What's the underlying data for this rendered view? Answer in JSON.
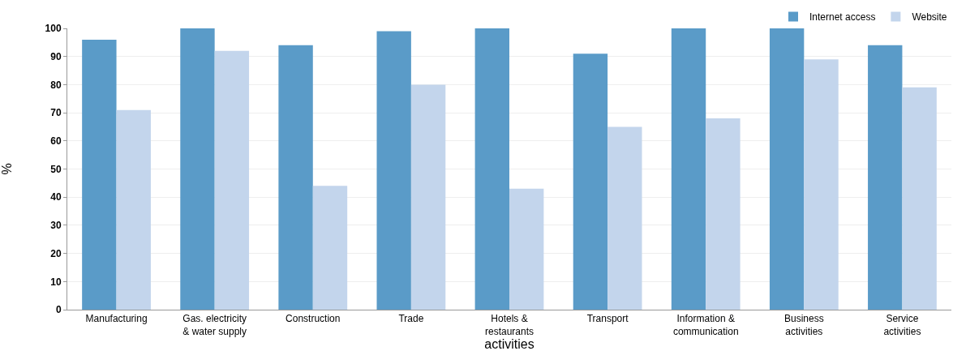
{
  "chart_data": {
    "type": "bar",
    "xlabel": "activities",
    "ylabel": "%",
    "categories": [
      "Manufacturing",
      "Gas. electricity & water supply",
      "Construction",
      "Trade",
      "Hotels & restaurants",
      "Transport",
      "Information & communication",
      "Business activities",
      "Service activities"
    ],
    "series": [
      {
        "name": "Internet access",
        "color": "#5a9bc8",
        "values": [
          96,
          100,
          94,
          99,
          100,
          91,
          100,
          100,
          94
        ]
      },
      {
        "name": "Website",
        "color": "#c3d5ec",
        "values": [
          71,
          92,
          44,
          80,
          43,
          65,
          68,
          89,
          79
        ]
      }
    ],
    "ylim": [
      0,
      100
    ],
    "yticks": [
      0,
      10,
      20,
      30,
      40,
      50,
      60,
      70,
      80,
      90,
      100
    ],
    "grid": "y",
    "legend": "top right"
  }
}
